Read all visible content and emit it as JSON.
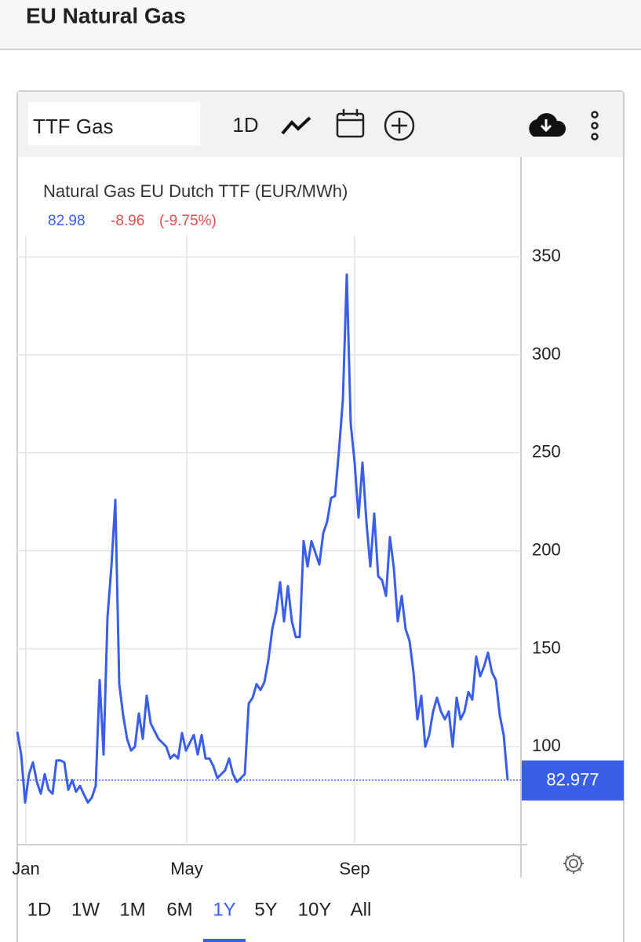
{
  "header": {
    "title": "EU Natural Gas"
  },
  "toolbar": {
    "symbol": "TTF Gas",
    "interval": "1D"
  },
  "chart_data": {
    "type": "line",
    "title": "Natural Gas EU Dutch TTF (EUR/MWh)",
    "quote": {
      "last": "82.98",
      "change": "-8.96",
      "change_percent": "(-9.75%)"
    },
    "color": "#3a5fe6",
    "values": [
      107.6,
      96,
      71.5,
      86,
      92,
      82,
      76,
      86,
      78,
      76,
      93,
      93,
      92,
      78,
      83,
      77,
      80,
      75.6,
      71.5,
      74,
      80,
      134,
      96,
      166,
      192,
      226,
      132,
      116,
      104,
      98,
      100,
      117,
      104,
      126,
      112,
      108,
      104,
      102,
      100,
      94,
      96,
      94,
      107,
      98,
      102,
      106,
      96,
      106,
      94,
      94,
      90,
      84,
      86,
      88,
      94,
      86,
      82,
      84,
      86,
      122,
      125,
      132,
      129,
      133,
      144,
      160,
      169,
      184,
      164,
      182,
      164,
      156,
      156,
      205,
      192,
      205,
      199,
      193,
      209,
      215,
      227,
      228,
      251,
      277,
      341,
      265,
      245,
      217,
      245,
      215,
      192,
      219,
      187,
      185,
      177,
      207,
      191,
      164,
      177,
      160,
      154,
      138,
      114,
      126,
      100,
      106,
      118,
      125,
      118,
      114,
      118,
      100,
      125,
      114,
      118,
      128,
      124,
      146,
      136,
      141,
      148,
      138,
      134,
      116,
      106,
      82.977
    ],
    "last_value": 82.977,
    "xlim": [
      0,
      128.4
    ],
    "xticks": [
      {
        "value": 2.2,
        "label": "Jan"
      },
      {
        "value": 43.2,
        "label": "May"
      },
      {
        "value": 86,
        "label": "Sep"
      }
    ],
    "ylim": [
      50,
      400
    ],
    "yticks": [
      100,
      150,
      200,
      250,
      300,
      350
    ],
    "grid": true
  },
  "range_buttons": [
    "1D",
    "1W",
    "1M",
    "6M",
    "1Y",
    "5Y",
    "10Y",
    "All"
  ],
  "selected_range": "1Y"
}
